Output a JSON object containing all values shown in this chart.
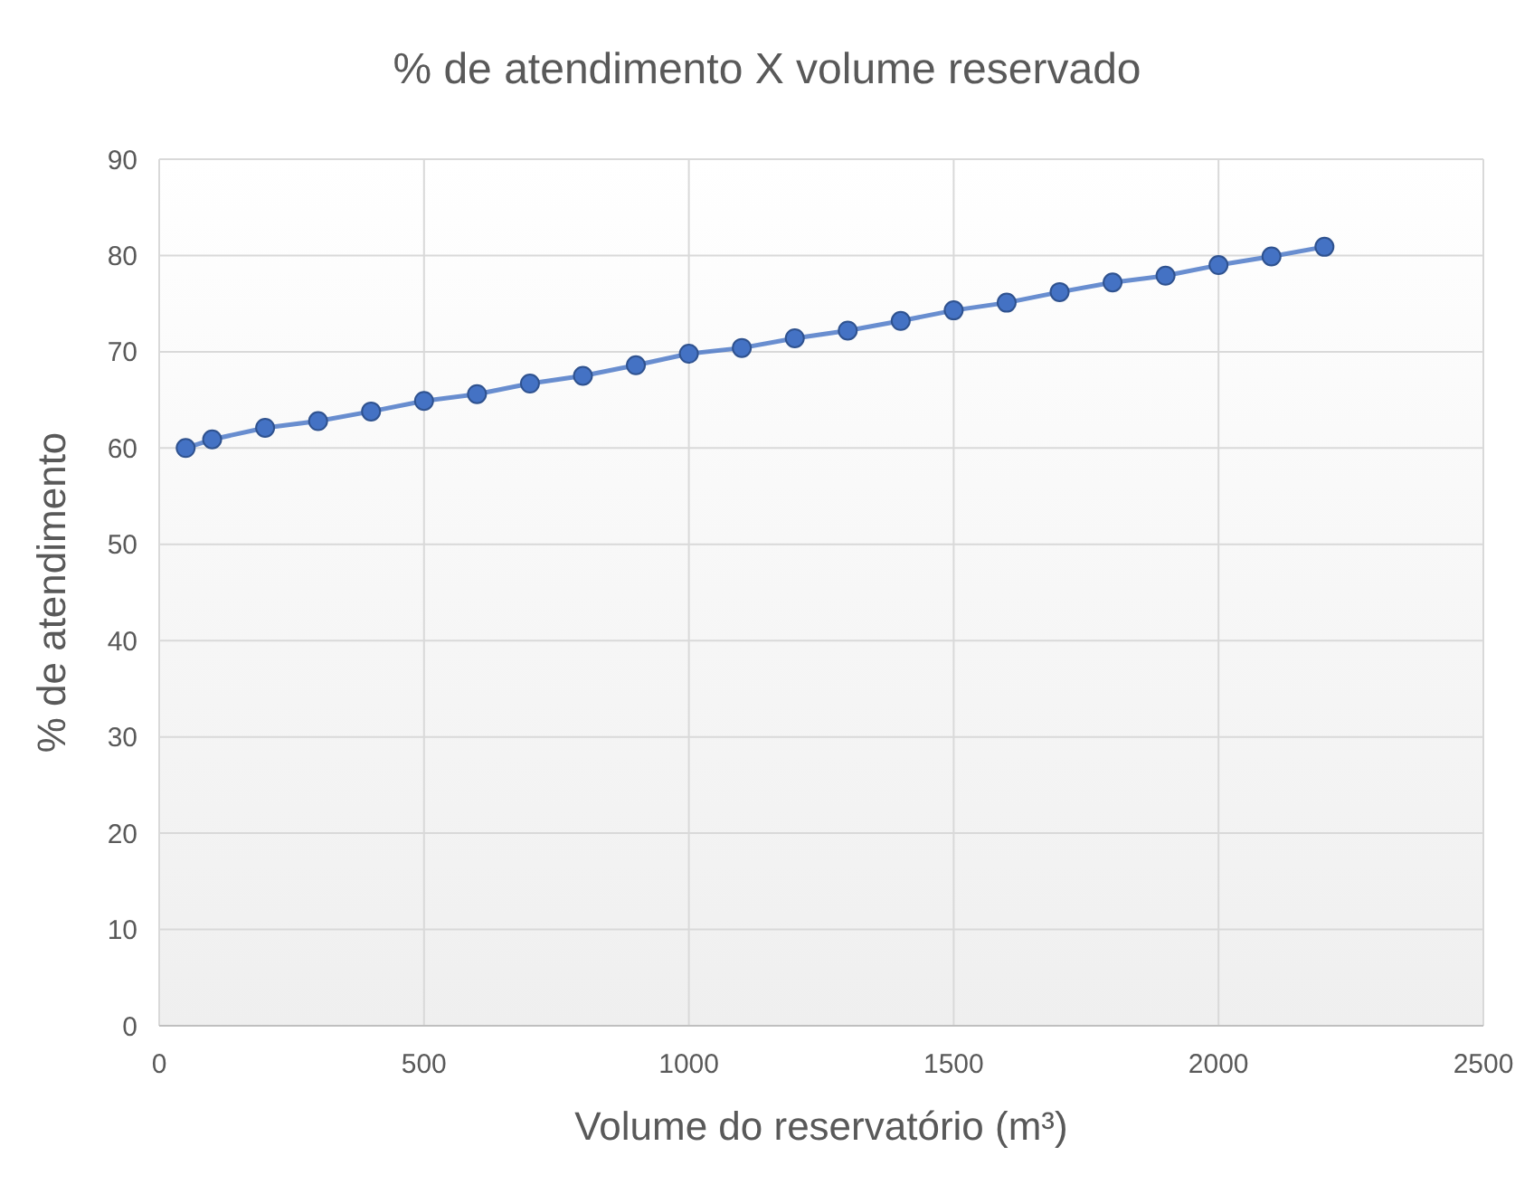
{
  "chart_data": {
    "type": "line",
    "title": "% de atendimento X volume reservado",
    "xlabel": "Volume do reservatório (m³)",
    "ylabel": "% de atendimento",
    "x": [
      50,
      100,
      200,
      300,
      400,
      500,
      600,
      700,
      800,
      900,
      1000,
      1100,
      1200,
      1300,
      1400,
      1500,
      1600,
      1700,
      1800,
      1900,
      2000,
      2100,
      2200
    ],
    "series": [
      {
        "color": "#4472c4",
        "values": [
          60,
          60.9,
          62.1,
          62.8,
          63.8,
          64.9,
          65.6,
          66.7,
          67.5,
          68.6,
          69.8,
          70.4,
          71.4,
          72.2,
          73.2,
          74.3,
          75.1,
          76.2,
          77.2,
          77.9,
          79,
          79.9,
          80.9
        ]
      }
    ],
    "xlim": [
      0,
      2500
    ],
    "xticks": [
      0,
      500,
      1000,
      1500,
      2000,
      2500
    ],
    "ylim": [
      0,
      90
    ],
    "yticks": [
      0,
      10,
      20,
      30,
      40,
      50,
      60,
      70,
      80,
      90
    ],
    "grid": true,
    "marker": "circle",
    "line_style": "solid"
  }
}
